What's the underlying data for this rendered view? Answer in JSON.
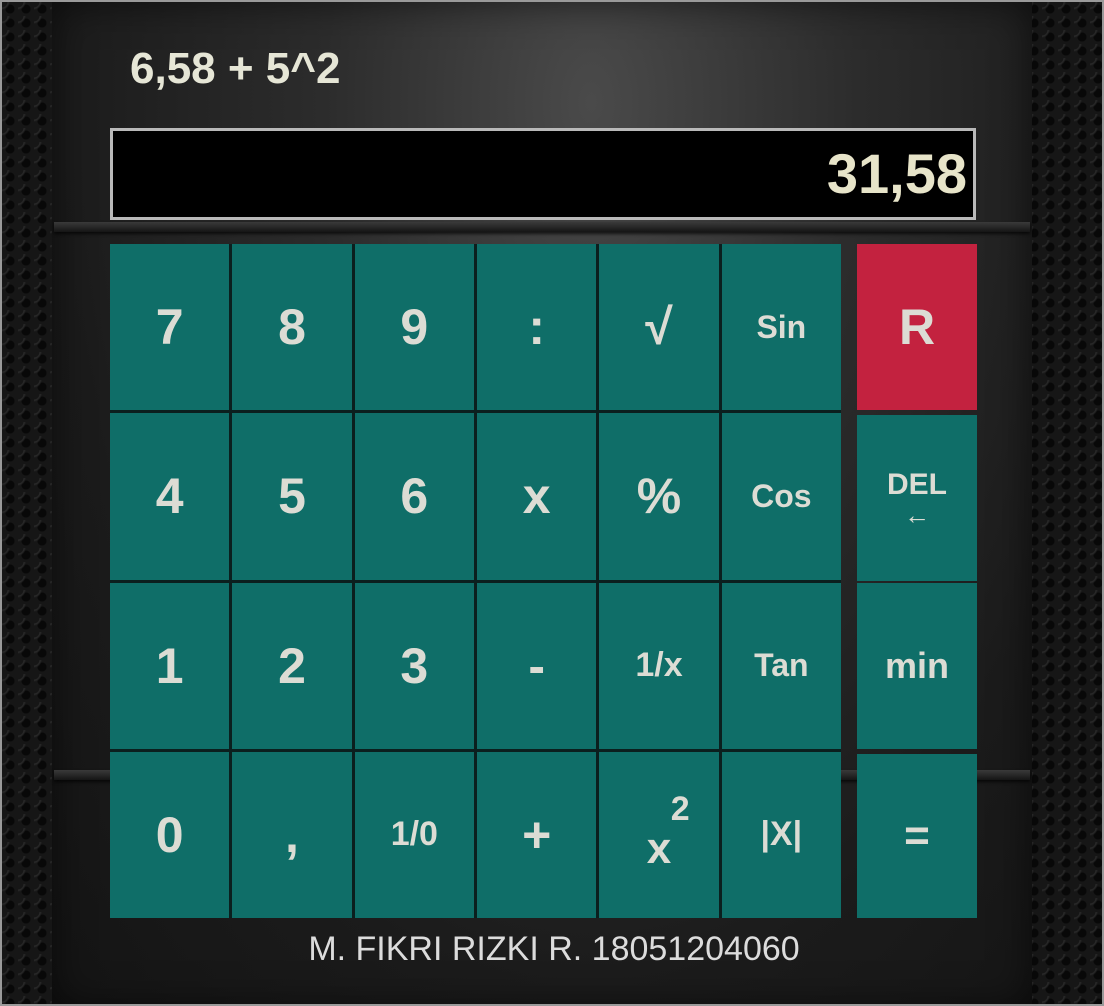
{
  "expression": "6,58 + 5^2",
  "display_value": "31,58",
  "keys": [
    {
      "label": "7"
    },
    {
      "label": "8"
    },
    {
      "label": "9"
    },
    {
      "label": ":"
    },
    {
      "label": "√"
    },
    {
      "label": "Sin"
    },
    {
      "label": "4"
    },
    {
      "label": "5"
    },
    {
      "label": "6"
    },
    {
      "label": "x"
    },
    {
      "label": "%"
    },
    {
      "label": "Cos"
    },
    {
      "label": "1"
    },
    {
      "label": "2"
    },
    {
      "label": "3"
    },
    {
      "label": "-"
    },
    {
      "label": "1/x"
    },
    {
      "label": "Tan"
    },
    {
      "label": "0"
    },
    {
      "label": ","
    },
    {
      "label": "1/0"
    },
    {
      "label": "+"
    },
    {
      "label": "x",
      "sup": "2"
    },
    {
      "label": "|X|"
    }
  ],
  "side_keys": {
    "reset": "R",
    "del": "DEL",
    "del_arrow": "←",
    "min": "min",
    "equals": "="
  },
  "footer": "M. FIKRI RIZKI R. 18051204060",
  "colors": {
    "key_teal": "#0f6e68",
    "reset_red": "#c3223f",
    "display_bg": "#000000",
    "display_text": "#e7e4c9"
  }
}
